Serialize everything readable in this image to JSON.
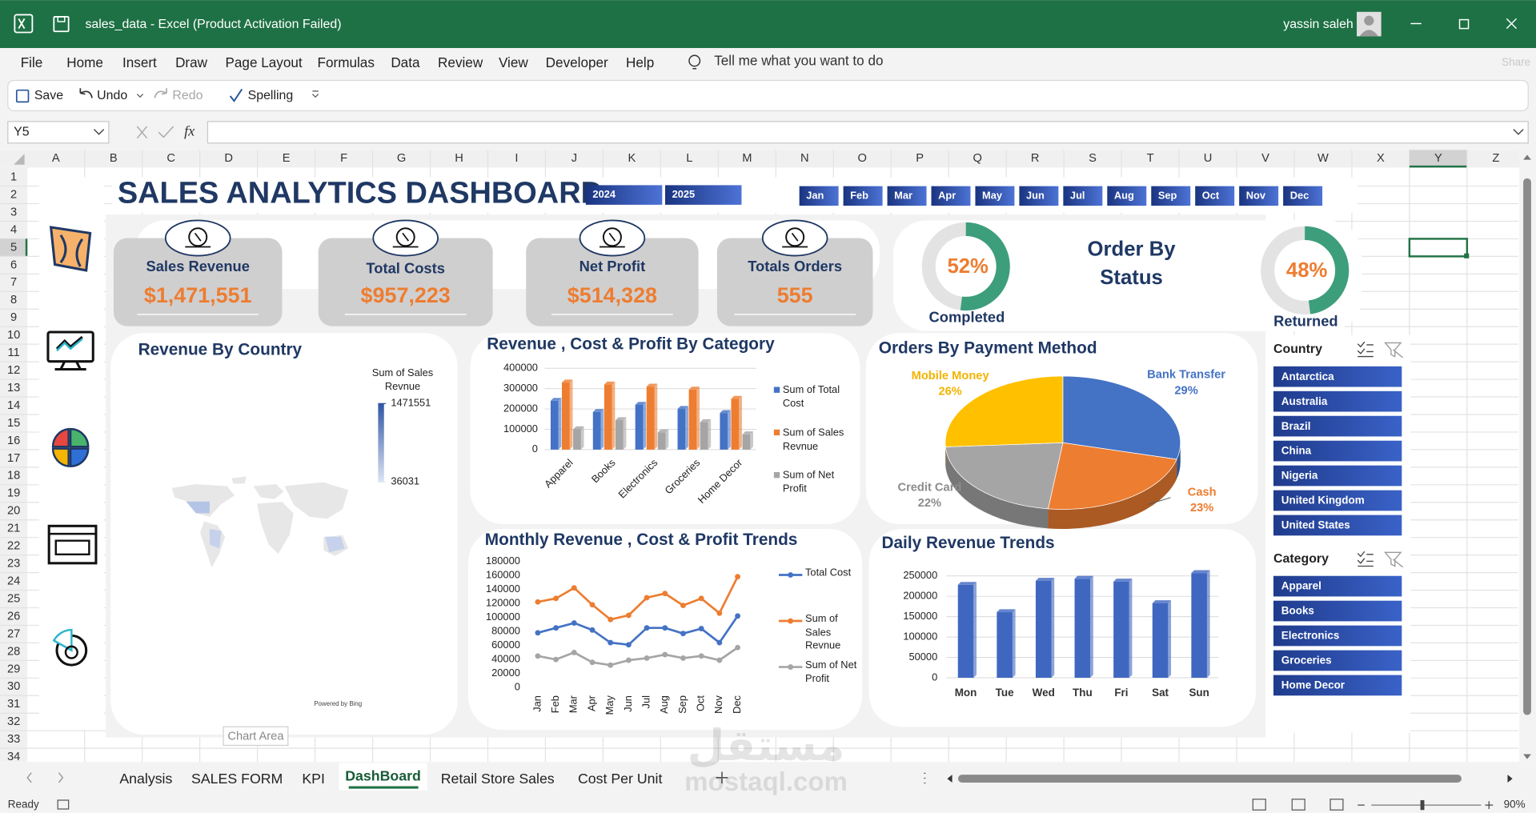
{
  "window": {
    "title": "sales_data  -  Excel (Product Activation Failed)",
    "user": "yassin saleh"
  },
  "menu": [
    "File",
    "Home",
    "Insert",
    "Draw",
    "Page Layout",
    "Formulas",
    "Data",
    "Review",
    "View",
    "Developer",
    "Help"
  ],
  "tell_me": "Tell me what you want to do",
  "share": "Share",
  "quick_access": [
    "Save",
    "Undo",
    "Redo",
    "Spelling"
  ],
  "name_box": "Y5",
  "formula_icon": "fx",
  "columns": [
    "A",
    "B",
    "C",
    "D",
    "E",
    "F",
    "G",
    "H",
    "I",
    "J",
    "K",
    "L",
    "M",
    "N",
    "O",
    "P",
    "Q",
    "R",
    "S",
    "T",
    "U",
    "V",
    "W",
    "X",
    "Y",
    "Z"
  ],
  "rows": [
    1,
    2,
    3,
    4,
    5,
    6,
    7,
    8,
    9,
    10,
    11,
    12,
    13,
    14,
    15,
    16,
    17,
    18,
    19,
    20,
    21,
    22,
    23,
    24,
    25,
    26,
    27,
    28,
    29,
    30,
    31,
    32,
    33,
    34
  ],
  "dashboard": {
    "title": "SALES ANALYTICS DASHBOARD",
    "years": [
      "2024",
      "2025"
    ],
    "months": [
      "Jan",
      "Feb",
      "Mar",
      "Apr",
      "May",
      "Jun",
      "Jul",
      "Aug",
      "Sep",
      "Oct",
      "Nov",
      "Dec"
    ],
    "kpis": [
      {
        "label": "Sales Revenue",
        "value": "$1,471,551"
      },
      {
        "label": "Total Costs",
        "value": "$957,223"
      },
      {
        "label": "Net Profit",
        "value": "$514,328"
      },
      {
        "label": "Totals Orders",
        "value": "555"
      }
    ],
    "slicers": [
      {
        "title": "Country",
        "items": [
          "Antarctica",
          "Australia",
          "Brazil",
          "China",
          "Nigeria",
          "United Kingdom",
          "United States"
        ]
      },
      {
        "title": "Category",
        "items": [
          "Apparel",
          "Books",
          "Electronics",
          "Groceries",
          "Home Decor"
        ]
      }
    ]
  },
  "chart_data": [
    {
      "type": "map",
      "title": "Revenue By Country",
      "legend_title": "Sum of Sales Revnue",
      "color_scale": {
        "max": 1471551,
        "min": 36031,
        "colors": [
          "#2f55a4",
          "#dde4f3"
        ]
      },
      "attribution": "Powered by Bing"
    },
    {
      "type": "bar",
      "title": "Revenue , Cost & Profit By Category",
      "categories": [
        "Apparel",
        "Books",
        "Electronics",
        "Groceries",
        "Home Decor"
      ],
      "series": [
        {
          "name": "Sum of Total Cost",
          "color": "#4472c4",
          "values": [
            240000,
            185000,
            220000,
            200000,
            180000
          ]
        },
        {
          "name": "Sum of Sales Revnue",
          "color": "#ed7d31",
          "values": [
            330000,
            320000,
            310000,
            295000,
            250000
          ]
        },
        {
          "name": "Sum of Net Profit",
          "color": "#a5a5a5",
          "values": [
            100000,
            145000,
            85000,
            135000,
            75000
          ]
        }
      ],
      "ylim": [
        0,
        400000
      ],
      "yticks": [
        0,
        100000,
        200000,
        300000,
        400000
      ],
      "grid": true,
      "legend": "right"
    },
    {
      "type": "pie",
      "title": "Orders By Payment Method",
      "categories": [
        "Bank Transfer",
        "Cash",
        "Credit Card",
        "Mobile Money"
      ],
      "values": [
        29,
        23,
        22,
        26
      ],
      "value_labels": [
        "29%",
        "23%",
        "22%",
        "26%"
      ],
      "colors": [
        "#4472c4",
        "#ed7d31",
        "#a5a5a5",
        "#ffc000"
      ]
    },
    {
      "type": "line",
      "title": "Monthly Revenue , Cost & Profit Trends",
      "categories": [
        "Jan",
        "Feb",
        "Mar",
        "Apr",
        "May",
        "Jun",
        "Jul",
        "Aug",
        "Sep",
        "Oct",
        "Nov",
        "Dec"
      ],
      "series": [
        {
          "name": "Total Cost",
          "color": "#4472c4",
          "values": [
            78000,
            85000,
            92000,
            82000,
            64000,
            61000,
            85000,
            85000,
            77000,
            84000,
            64000,
            102000
          ]
        },
        {
          "name": "Sum of Sales Revnue",
          "color": "#ed7d31",
          "values": [
            122000,
            127000,
            142000,
            118000,
            97000,
            103000,
            128000,
            134000,
            117000,
            127000,
            106000,
            158000
          ]
        },
        {
          "name": "Sum of Net Profit",
          "color": "#a5a5a5",
          "values": [
            45000,
            40000,
            50000,
            36000,
            32000,
            39000,
            42000,
            47000,
            42000,
            45000,
            39000,
            57000
          ]
        }
      ],
      "ylim": [
        0,
        180000
      ],
      "yticks": [
        0,
        20000,
        40000,
        60000,
        80000,
        100000,
        120000,
        140000,
        160000,
        180000
      ],
      "grid": false,
      "legend": "right"
    },
    {
      "type": "bar",
      "title": "Daily Revenue Trends",
      "categories": [
        "Mon",
        "Tue",
        "Wed",
        "Thu",
        "Fri",
        "Sat",
        "Sun"
      ],
      "values": [
        228000,
        161000,
        238000,
        243000,
        236000,
        183000,
        257000
      ],
      "color": "#3f67c0",
      "ylim": [
        0,
        250000
      ],
      "yticks": [
        0,
        50000,
        100000,
        150000,
        200000,
        250000
      ],
      "grid": true
    },
    {
      "type": "donut",
      "title": "Order By Status",
      "categories": [
        "Completed",
        "Returned"
      ],
      "values": [
        52,
        48
      ],
      "value_labels": [
        "52%",
        "48%"
      ],
      "color": "#3d9e7c"
    }
  ],
  "chart_area_tip": "Chart Area",
  "sheets": [
    "Analysis",
    "SALES FORM",
    "KPI",
    "DashBoard",
    "Retail Store Sales",
    "Cost Per Unit"
  ],
  "active_sheet": 3,
  "status": "Ready",
  "zoom": "90%",
  "watermark": [
    "مستقل",
    "mostaql.com"
  ]
}
